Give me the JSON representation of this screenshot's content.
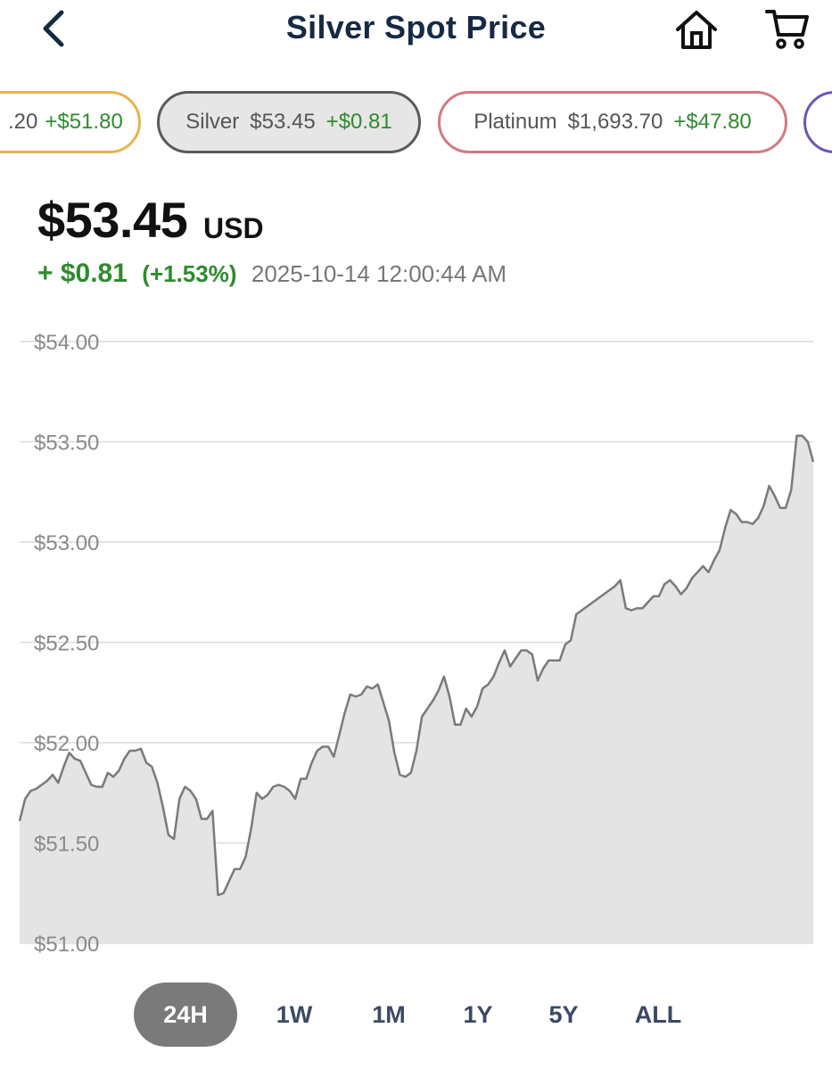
{
  "header": {
    "title": "Silver Spot Price"
  },
  "icons": {
    "back": "chevron-left-icon",
    "home": "home-icon",
    "cart": "shopping-cart-icon"
  },
  "colors": {
    "title": "#152a45",
    "positive": "#2e8b2e",
    "chip_gold_border": "#e6b44c",
    "chip_silver_border": "#5a5a5a",
    "chip_platinum_border": "#d27a80",
    "chip_next_border": "#6f55b8",
    "chart_line": "#7a7a7a",
    "chart_fill": "#e4e4e4",
    "tab_active_bg": "#7a7a7a"
  },
  "chips": [
    {
      "metal": "",
      "price": ".20",
      "change": "+$51.80"
    },
    {
      "metal": "Silver",
      "price": "$53.45",
      "change": "+$0.81",
      "selected": true
    },
    {
      "metal": "Platinum",
      "price": "$1,693.70",
      "change": "+$47.80"
    },
    {
      "metal": "",
      "price": "",
      "change": ""
    }
  ],
  "quote": {
    "price": "$53.45",
    "unit": "USD",
    "change": "+ $0.81",
    "change_pct": "(+1.53%)",
    "timestamp": "2025-10-14 12:00:44 AM"
  },
  "chart_data": {
    "type": "area",
    "ylim": [
      51.0,
      54.0
    ],
    "yticks": [
      "$54.00",
      "$53.50",
      "$53.00",
      "$52.50",
      "$52.00",
      "$51.50",
      "$51.00"
    ],
    "ytick_values": [
      54.0,
      53.5,
      53.0,
      52.5,
      52.0,
      51.5,
      51.0
    ],
    "grid": true,
    "x_points": 164,
    "values": [
      51.61,
      51.72,
      51.76,
      51.77,
      51.79,
      51.81,
      51.84,
      51.8,
      51.88,
      51.95,
      51.92,
      51.91,
      51.85,
      51.79,
      51.78,
      51.78,
      51.85,
      51.83,
      51.86,
      51.92,
      51.96,
      51.96,
      51.97,
      51.9,
      51.88,
      51.8,
      51.68,
      51.54,
      51.52,
      51.72,
      51.78,
      51.76,
      51.72,
      51.62,
      51.62,
      51.66,
      51.24,
      51.25,
      51.31,
      51.37,
      51.37,
      51.43,
      51.57,
      51.75,
      51.72,
      51.74,
      51.78,
      51.79,
      51.78,
      51.76,
      51.72,
      51.82,
      51.82,
      51.9,
      51.96,
      51.98,
      51.98,
      51.93,
      52.04,
      52.15,
      52.24,
      52.23,
      52.24,
      52.28,
      52.27,
      52.29,
      52.2,
      52.11,
      51.95,
      51.84,
      51.83,
      51.85,
      51.96,
      52.13,
      52.17,
      52.21,
      52.26,
      52.33,
      52.23,
      52.09,
      52.09,
      52.17,
      52.13,
      52.18,
      52.27,
      52.29,
      52.33,
      52.4,
      52.46,
      52.38,
      52.42,
      52.46,
      52.46,
      52.44,
      52.31,
      52.37,
      52.41,
      52.41,
      52.41,
      52.49,
      52.51,
      52.64,
      52.66,
      52.68,
      52.7,
      52.72,
      52.74,
      52.76,
      52.78,
      52.81,
      52.67,
      52.66,
      52.67,
      52.67,
      52.7,
      52.73,
      52.73,
      52.79,
      52.81,
      52.78,
      52.74,
      52.77,
      52.82,
      52.85,
      52.88,
      52.85,
      52.91,
      52.96,
      53.07,
      53.16,
      53.14,
      53.1,
      53.1,
      53.09,
      53.12,
      53.18,
      53.28,
      53.23,
      53.17,
      53.17,
      53.26,
      53.53,
      53.53,
      53.5,
      53.4
    ]
  },
  "tabs": [
    {
      "label": "24H",
      "active": true
    },
    {
      "label": "1W",
      "active": false
    },
    {
      "label": "1M",
      "active": false
    },
    {
      "label": "1Y",
      "active": false
    },
    {
      "label": "5Y",
      "active": false
    },
    {
      "label": "ALL",
      "active": false
    }
  ]
}
